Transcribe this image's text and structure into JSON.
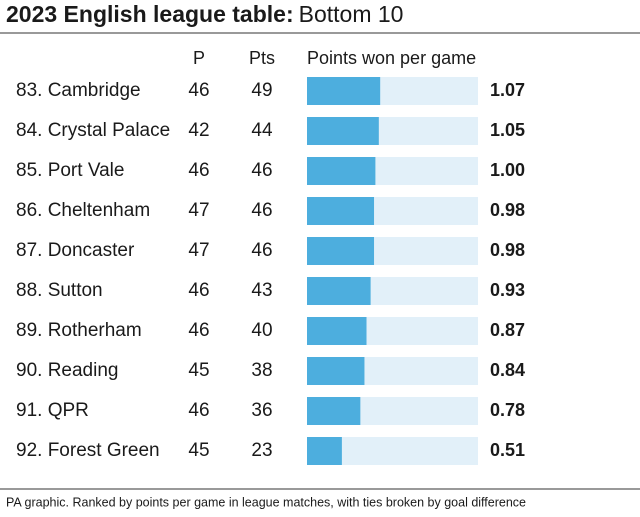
{
  "chart_data": {
    "type": "bar",
    "title": "2023 English league table:",
    "subtitle": "Bottom 10",
    "column_headers": [
      "P",
      "Pts",
      "Points won per game"
    ],
    "categories": [
      "83. Cambridge",
      "84. Crystal Palace",
      "85. Port Vale",
      "86. Cheltenham",
      "87. Doncaster",
      "88. Sutton",
      "89. Rotherham",
      "90. Reading",
      "91. QPR",
      "92. Forest Green"
    ],
    "played": [
      46,
      42,
      46,
      47,
      47,
      46,
      46,
      45,
      46,
      45
    ],
    "points": [
      49,
      44,
      46,
      46,
      46,
      43,
      40,
      38,
      36,
      23
    ],
    "values": [
      1.07,
      1.05,
      1.0,
      0.98,
      0.98,
      0.93,
      0.87,
      0.84,
      0.78,
      0.51
    ],
    "value_labels": [
      "1.07",
      "1.05",
      "1.00",
      "0.98",
      "0.98",
      "0.93",
      "0.87",
      "0.84",
      "0.78",
      "0.51"
    ],
    "xlim": [
      0,
      2.5
    ],
    "color": "#4daede",
    "track_color": "#e2f0f9",
    "footnote": "PA graphic. Ranked by points per game in league matches, with ties broken by goal difference"
  }
}
